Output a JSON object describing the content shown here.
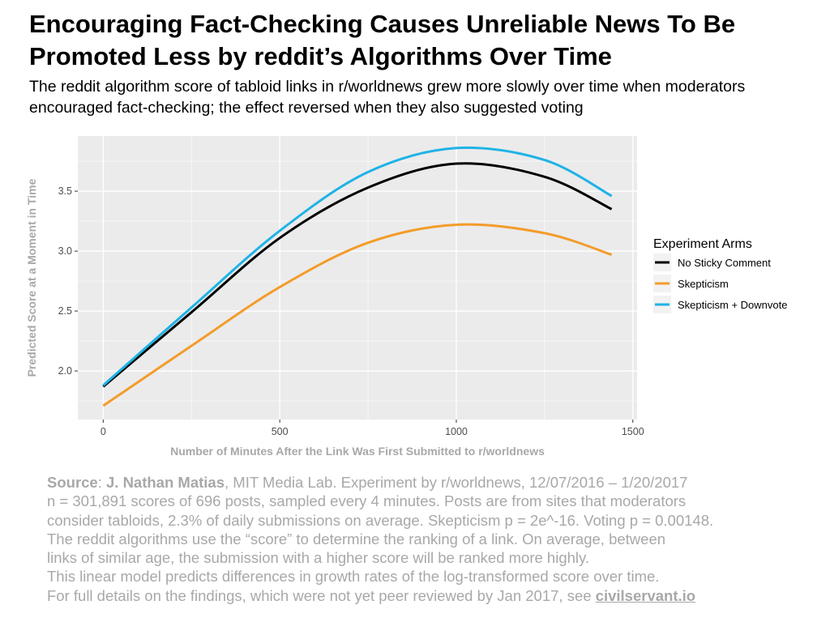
{
  "header": {
    "title": "Encouraging Fact-Checking Causes Unreliable News To Be Promoted Less by reddit’s Algorithms Over Time",
    "subtitle": "The reddit algorithm score of tabloid links in r/worldnews grew more slowly over time when moderators encouraged fact-checking; the effect reversed when they also suggested voting"
  },
  "chart_data": {
    "type": "line",
    "xlabel": "Number of Minutes After the Link Was First Submitted to r/worldnews",
    "ylabel": "Predicted Score at a Moment in Time",
    "xlim": [
      -72,
      1512
    ],
    "ylim": [
      1.595,
      3.96
    ],
    "xticks": [
      0,
      500,
      1000,
      1500
    ],
    "xtick_labels": [
      "0",
      "500",
      "1000",
      "1500"
    ],
    "yticks": [
      2.0,
      2.5,
      3.0,
      3.5
    ],
    "ytick_labels": [
      "2.0",
      "2.5",
      "3.0",
      "3.5"
    ],
    "grid": true,
    "legend": {
      "title": "Experiment Arms",
      "placement": "right"
    },
    "x": [
      0,
      250,
      500,
      750,
      1000,
      1250,
      1440
    ],
    "series": [
      {
        "name": "No Sticky Comment",
        "color": "#000000",
        "values": [
          1.87,
          2.49,
          3.11,
          3.53,
          3.73,
          3.62,
          3.35
        ]
      },
      {
        "name": "Skepticism",
        "color": "#f39c2a",
        "values": [
          1.71,
          2.21,
          2.7,
          3.07,
          3.22,
          3.15,
          2.97
        ]
      },
      {
        "name": "Skepticism + Downvote",
        "color": "#1fb3e6",
        "values": [
          1.88,
          2.53,
          3.17,
          3.66,
          3.86,
          3.76,
          3.46
        ]
      }
    ]
  },
  "source": {
    "label": "Source",
    "author": "J. Nathan Matias",
    "line1_rest": ", MIT Media Lab. Experiment by r/worldnews, 12/07/2016 – 1/20/2017",
    "line2": "n = 301,891 scores of 696 posts, sampled every 4 minutes. Posts are from sites that moderators",
    "line3": "consider tabloids, 2.3% of daily submissions on average. Skepticism p = 2e^-16. Voting p = 0.00148.",
    "line4": "The reddit algorithms use the “score” to determine the ranking of a link. On average, between",
    "line5": "links of similar age, the submission with a higher score will be ranked more highly.",
    "line6": "This linear model predicts differences in growth rates of the log-transformed score over time.",
    "line7": "For full details on the findings, which were not yet peer reviewed by Jan 2017, see ",
    "link": "civilservant.io"
  }
}
